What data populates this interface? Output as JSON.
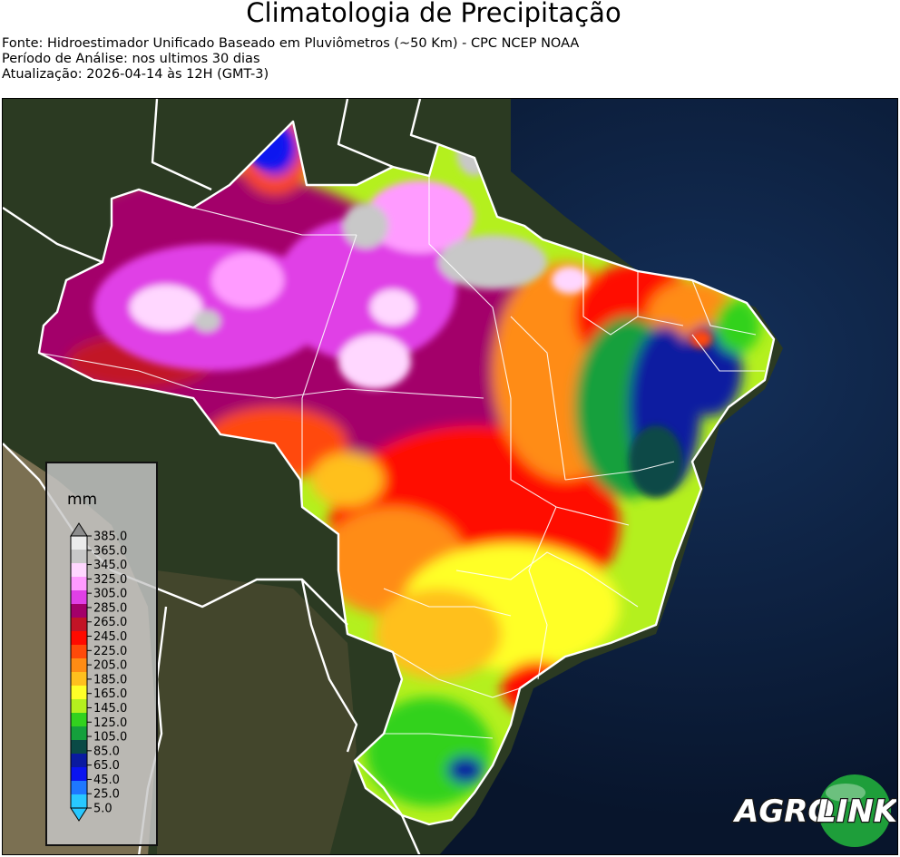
{
  "header": {
    "title": "Climatologia de Precipitação",
    "source": "Fonte: Hidroestimador Unificado Baseado em Pluviômetros (~50 Km) - CPC NCEP NOAA",
    "period": "Período de Análise: nos ultimos 30 dias",
    "updated": "Atualização: 2026-04-14 às 12H (GMT-3)"
  },
  "legend": {
    "unit": "mm",
    "ticks": [
      "385.0",
      "365.0",
      "345.0",
      "325.0",
      "305.0",
      "285.0",
      "265.0",
      "245.0",
      "225.0",
      "205.0",
      "185.0",
      "165.0",
      "145.0",
      "125.0",
      "105.0",
      "85.0",
      "65.0",
      "45.0",
      "25.0",
      "5.0"
    ],
    "colors": [
      "#ebebeb",
      "#c8c8c8",
      "#ffd7ff",
      "#ff9bff",
      "#e040e6",
      "#a3006a",
      "#c21426",
      "#ff0a00",
      "#ff4a0a",
      "#ff8c14",
      "#ffc01e",
      "#ffff28",
      "#b4f01e",
      "#32d21e",
      "#14a03c",
      "#0a4a46",
      "#0a1aa0",
      "#0a14f0",
      "#1e78ff",
      "#28c8ff"
    ]
  },
  "logo": {
    "text_a": "AGRO",
    "text_b": "LINK",
    "colors": {
      "green": "#1e9e3a",
      "dark": "#1a1a1a",
      "white": "#ffffff"
    }
  }
}
